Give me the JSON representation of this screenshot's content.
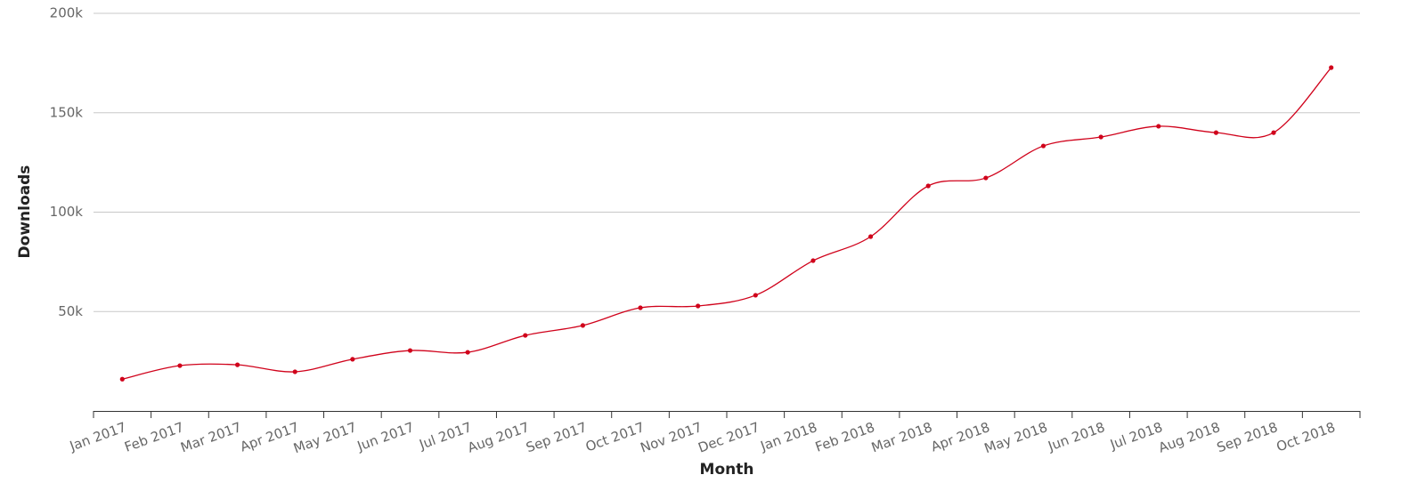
{
  "chart_data": {
    "type": "line",
    "y_label": "Downloads",
    "x_label": "Month",
    "categories": [
      "Jan 2017",
      "Feb 2017",
      "Mar 2017",
      "Apr 2017",
      "May 2017",
      "Jun 2017",
      "Jul 2017",
      "Aug 2017",
      "Sep 2017",
      "Oct 2017",
      "Nov 2017",
      "Dec 2017",
      "Jan 2018",
      "Feb 2018",
      "Mar 2018",
      "Apr 2018",
      "May 2018",
      "Jun 2018",
      "Jul 2018",
      "Aug 2018",
      "Sep 2018",
      "Oct 2018"
    ],
    "series": [
      {
        "name": "Downloads",
        "color": "#d0021b",
        "values": [
          16000,
          22800,
          23200,
          19700,
          26000,
          30400,
          29500,
          38000,
          43000,
          51900,
          52800,
          58200,
          75600,
          87700,
          113200,
          117200,
          133300,
          137800,
          143200,
          140000,
          140000,
          172700
        ]
      }
    ],
    "ylim": [
      0,
      200000
    ],
    "yticks": [
      {
        "value": 50000,
        "label": "50k"
      },
      {
        "value": 100000,
        "label": "100k"
      },
      {
        "value": 150000,
        "label": "150k"
      },
      {
        "value": 200000,
        "label": "200k"
      }
    ],
    "grid": true
  }
}
